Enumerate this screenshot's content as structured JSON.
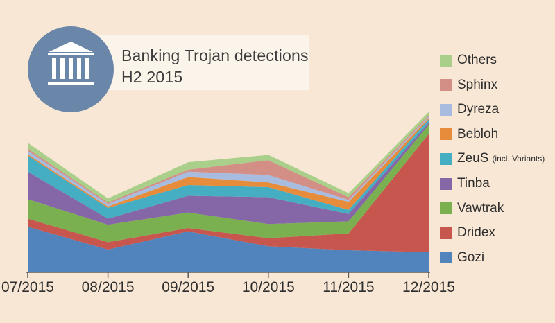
{
  "title": "Banking Trojan detections",
  "subtitle": "H2 2015",
  "icon": "bank-building-icon",
  "chart_data": {
    "type": "area",
    "stacked": true,
    "categories": [
      "07/2015",
      "08/2015",
      "09/2015",
      "10/2015",
      "11/2015",
      "12/2015"
    ],
    "ylim": [
      0,
      255
    ],
    "series": [
      {
        "name": "Gozi",
        "color": "#5184bc",
        "values": [
          67,
          33,
          60,
          38,
          32,
          29
        ]
      },
      {
        "name": "Dridex",
        "color": "#c7564f",
        "values": [
          12,
          11,
          5,
          12,
          25,
          176
        ]
      },
      {
        "name": "Vawtrak",
        "color": "#7ab04f",
        "values": [
          29,
          26,
          23,
          21,
          18,
          14
        ]
      },
      {
        "name": "Tinba",
        "color": "#8566a6",
        "values": [
          41,
          9,
          25,
          40,
          11,
          3
        ]
      },
      {
        "name": "ZeuS",
        "label_note": "(incl. Variants)",
        "color": "#45aec2",
        "values": [
          24,
          16,
          16,
          15,
          6,
          5
        ]
      },
      {
        "name": "Bebloh",
        "color": "#e68c3b",
        "values": [
          2,
          2,
          12,
          7,
          12,
          2
        ]
      },
      {
        "name": "Dyreza",
        "color": "#a8bce0",
        "values": [
          5,
          4,
          8,
          11,
          3,
          2
        ]
      },
      {
        "name": "Sphinx",
        "color": "#d38f86",
        "values": [
          3,
          2,
          3,
          22,
          4,
          2
        ]
      },
      {
        "name": "Others",
        "color": "#a9cf8a",
        "values": [
          9,
          6,
          11,
          8,
          6,
          5
        ]
      }
    ],
    "legend_order": [
      "Others",
      "Sphinx",
      "Dyreza",
      "Bebloh",
      "ZeuS",
      "Tinba",
      "Vawtrak",
      "Dridex",
      "Gozi"
    ],
    "legend_position": "right",
    "grid": false,
    "xlabel": "",
    "ylabel": ""
  }
}
